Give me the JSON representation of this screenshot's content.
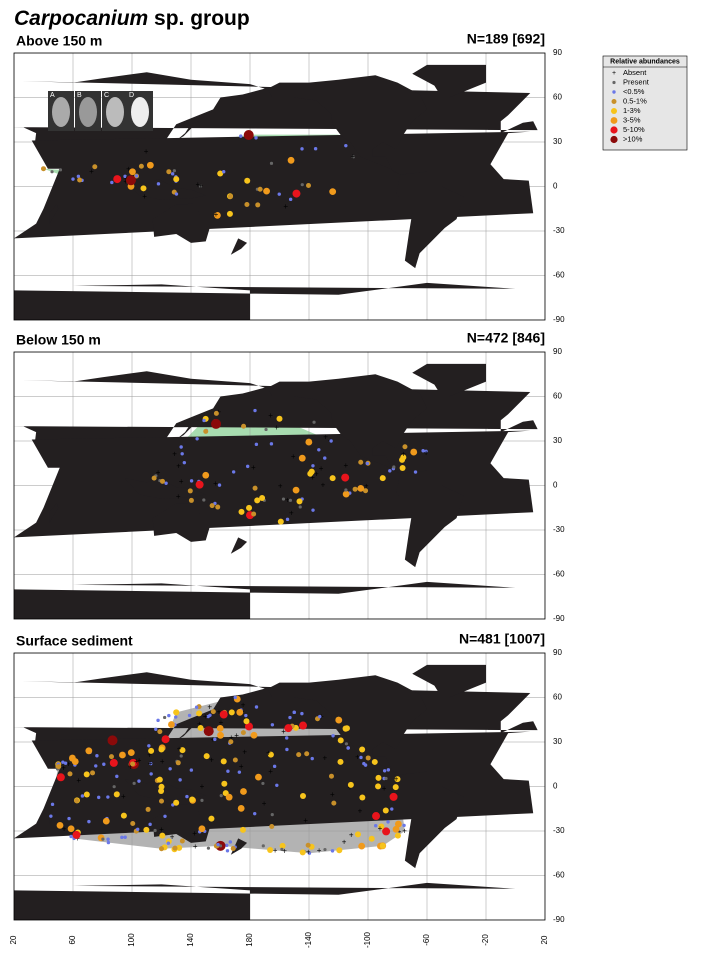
{
  "title": {
    "italic": "Carpocanium",
    "rest": "sp. group"
  },
  "insets": [
    "A",
    "B",
    "C",
    "D"
  ],
  "legend": {
    "title": "Relative abundances",
    "items": [
      "Absent",
      "Present",
      "<0.5%",
      "0.5-1%",
      "1-3%",
      "3-5%",
      "5-10%",
      ">10%"
    ]
  },
  "panels": [
    {
      "title": "Above 150 m",
      "count": "N=189 [692]"
    },
    {
      "title": "Below 150 m",
      "count": "N=472 [846]"
    },
    {
      "title": "Surface sediment",
      "count": "N=481 [1007]"
    }
  ],
  "lat_ticks": [
    "90",
    "60",
    "30",
    "0",
    "-30",
    "-60",
    "-90"
  ],
  "lon_ticks": [
    "20",
    "60",
    "100",
    "140",
    "180",
    "-140",
    "-100",
    "-60",
    "-20",
    "20"
  ]
}
